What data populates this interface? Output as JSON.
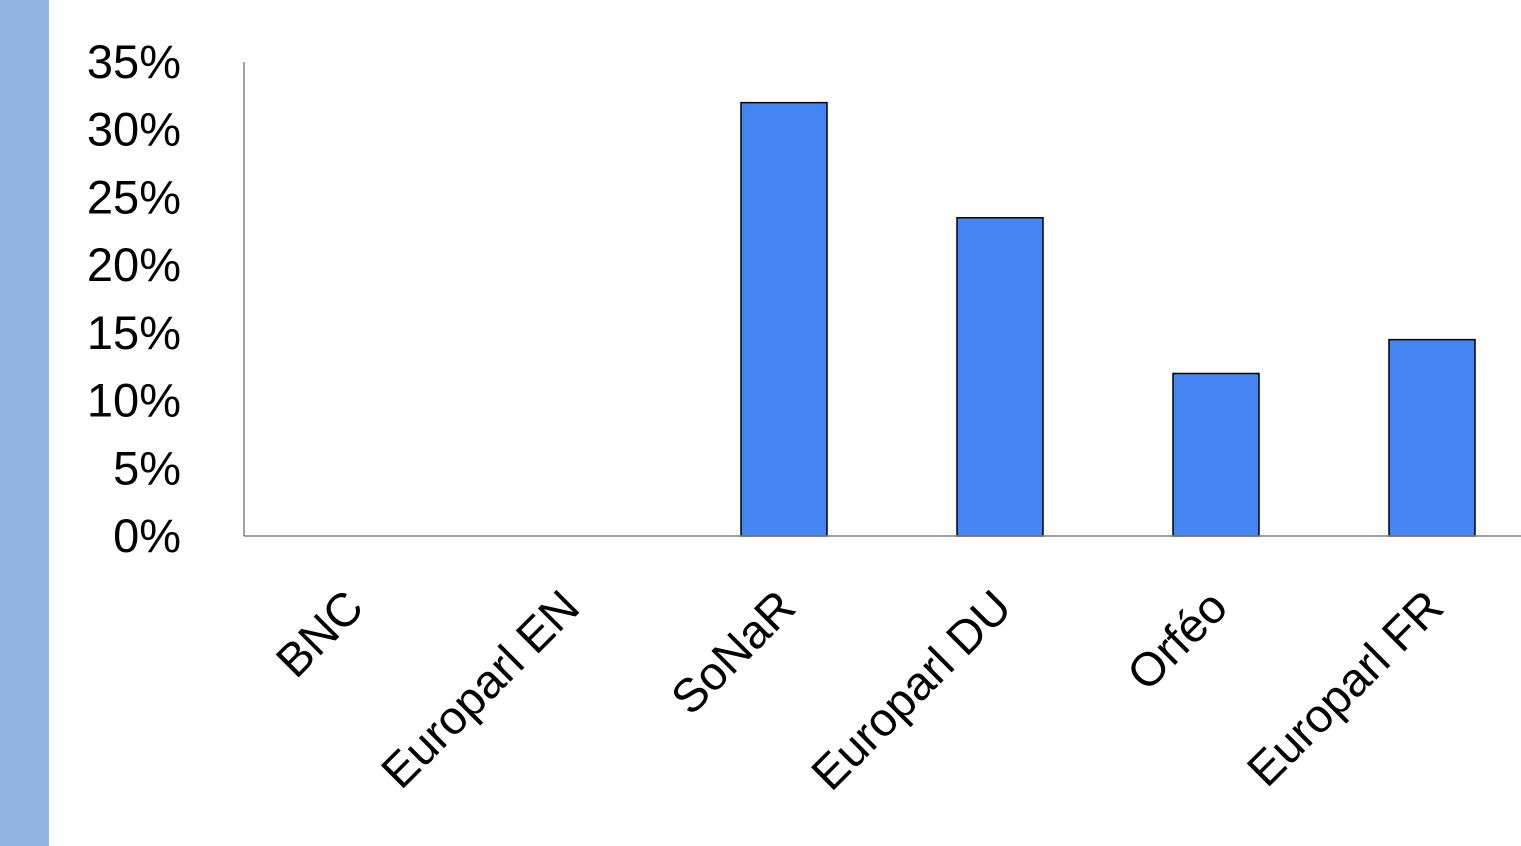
{
  "theme": {
    "side_strip_color": "#93b4e2",
    "bar_color": "#4486f4",
    "bar_stroke": "#000000",
    "axis_color": "#808080"
  },
  "chart_data": {
    "type": "bar",
    "title": "",
    "xlabel": "",
    "ylabel": "",
    "categories": [
      "BNC",
      "Europarl EN",
      "SoNaR",
      "Europarl DU",
      "Orféo",
      "Europarl FR"
    ],
    "values": [
      0,
      0,
      32,
      23.5,
      12,
      14.5
    ],
    "value_unit": "%",
    "ylim": [
      0,
      35
    ],
    "yticks": [
      0,
      5,
      10,
      15,
      20,
      25,
      30,
      35
    ],
    "ytick_labels": [
      "0%",
      "5%",
      "10%",
      "15%",
      "20%",
      "25%",
      "30%",
      "35%"
    ],
    "grid": false,
    "legend": "none"
  }
}
